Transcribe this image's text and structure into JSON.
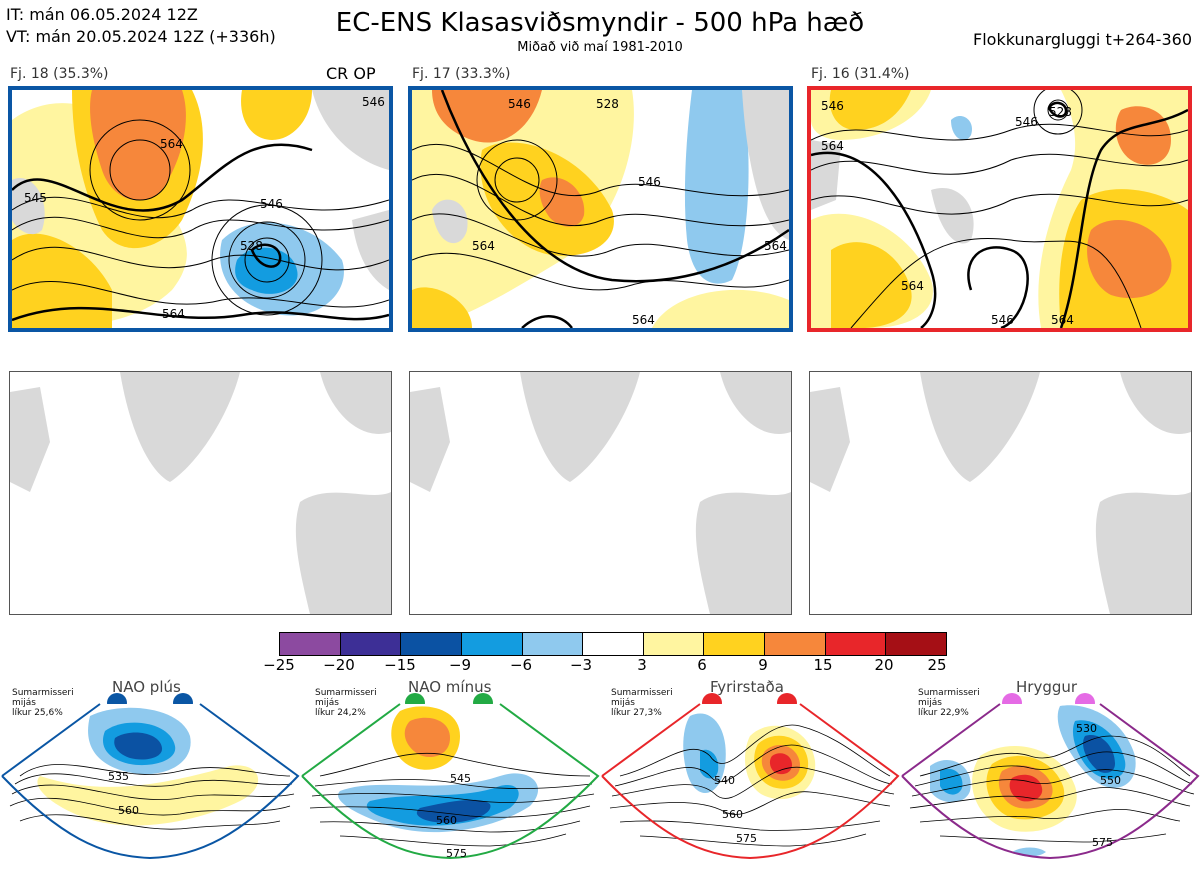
{
  "header": {
    "it_line": "IT: mán 06.05.2024 12Z",
    "vt_line": "VT: mán 20.05.2024 12Z  (+336h)",
    "title": "EC-ENS Klasasviðsmyndir - 500 hPa hæð",
    "subtitle": "Miðað við maí 1981-2010",
    "window": "Flokkunargluggi t+264-360"
  },
  "clusters": [
    {
      "label": "Fj. 18 (35.3%)",
      "badge": "CR OP",
      "border": "#0a56a4",
      "contours": [
        "546",
        "564",
        "546",
        "528",
        "564",
        "545"
      ]
    },
    {
      "label": "Fj. 17 (33.3%)",
      "badge": "",
      "border": "#0a56a4",
      "contours": [
        "546",
        "528",
        "546",
        "564",
        "564",
        "564"
      ]
    },
    {
      "label": "Fj. 16 (31.4%)",
      "badge": "",
      "border": "#e8262a",
      "contours": [
        "546",
        "528",
        "546",
        "564",
        "564",
        "564",
        "546"
      ]
    }
  ],
  "colorbar": {
    "labels": [
      "−25",
      "−20",
      "−15",
      "−9",
      "−6",
      "−3",
      "3",
      "6",
      "9",
      "15",
      "20",
      "25"
    ],
    "colors": [
      "#8c4aa0",
      "#3d2f96",
      "#0b52a3",
      "#139ce0",
      "#8fc9ee",
      "#ffffff",
      "#fff5a0",
      "#ffd21f",
      "#f6873b",
      "#e8262a",
      "#a50f15"
    ]
  },
  "regimes": [
    {
      "name": "NAO plús",
      "meta": [
        "Sumarmisseri",
        "mijás",
        "líkur 25,6%"
      ],
      "color": "#0a56a4",
      "labels": [
        "535",
        "560"
      ]
    },
    {
      "name": "NAO mínus",
      "meta": [
        "Sumarmisseri",
        "mijás",
        "líkur 24,2%"
      ],
      "color": "#22aa44",
      "labels": [
        "545",
        "560",
        "575"
      ]
    },
    {
      "name": "Fyrirstaða",
      "meta": [
        "Sumarmisseri",
        "mijás",
        "líkur 27,3%"
      ],
      "color": "#e8262a",
      "labels": [
        "540",
        "560",
        "575"
      ]
    },
    {
      "name": "Hryggur",
      "meta": [
        "Sumarmisseri",
        "mijás",
        "líkur 22,9%"
      ],
      "color": "#e56be5",
      "labels": [
        "530",
        "550",
        "575"
      ]
    }
  ]
}
